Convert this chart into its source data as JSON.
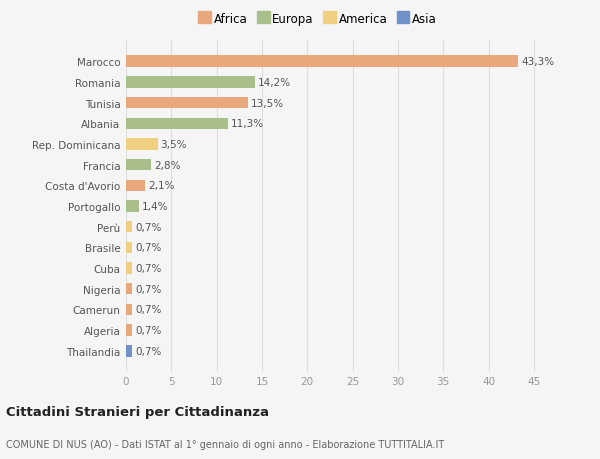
{
  "countries": [
    "Marocco",
    "Romania",
    "Tunisia",
    "Albania",
    "Rep. Dominicana",
    "Francia",
    "Costa d'Avorio",
    "Portogallo",
    "Perù",
    "Brasile",
    "Cuba",
    "Nigeria",
    "Camerun",
    "Algeria",
    "Thailandia"
  ],
  "values": [
    43.3,
    14.2,
    13.5,
    11.3,
    3.5,
    2.8,
    2.1,
    1.4,
    0.7,
    0.7,
    0.7,
    0.7,
    0.7,
    0.7,
    0.7
  ],
  "labels": [
    "43,3%",
    "14,2%",
    "13,5%",
    "11,3%",
    "3,5%",
    "2,8%",
    "2,1%",
    "1,4%",
    "0,7%",
    "0,7%",
    "0,7%",
    "0,7%",
    "0,7%",
    "0,7%",
    "0,7%"
  ],
  "colors": [
    "#e8a87c",
    "#a8bf8a",
    "#e8a87c",
    "#a8bf8a",
    "#f0d080",
    "#a8bf8a",
    "#e8a87c",
    "#a8bf8a",
    "#f0d080",
    "#f0d080",
    "#f0d080",
    "#e8a87c",
    "#e8a87c",
    "#e8a87c",
    "#7090c8"
  ],
  "legend_labels": [
    "Africa",
    "Europa",
    "America",
    "Asia"
  ],
  "legend_colors": [
    "#e8a87c",
    "#a8bf8a",
    "#f0d080",
    "#7090c8"
  ],
  "title": "Cittadini Stranieri per Cittadinanza",
  "subtitle": "COMUNE DI NUS (AO) - Dati ISTAT al 1° gennaio di ogni anno - Elaborazione TUTTITALIA.IT",
  "xlim": [
    0,
    47
  ],
  "xticks": [
    0,
    5,
    10,
    15,
    20,
    25,
    30,
    35,
    40,
    45
  ],
  "background_color": "#f5f5f5",
  "grid_color": "#dddddd"
}
